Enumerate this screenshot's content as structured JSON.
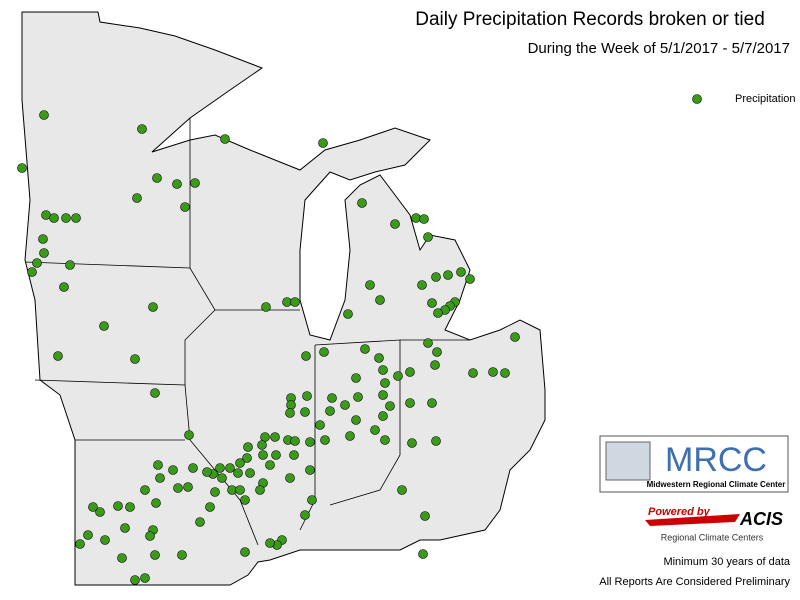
{
  "header": {
    "title": "Daily Precipitation Records broken or tied",
    "subtitle": "During the Week of 5/1/2017 - 5/7/2017"
  },
  "legend": {
    "label": "Precipitation",
    "color": "#3a9a1a"
  },
  "logos": {
    "mrcc": "MRCC",
    "mrcc_name": "Midwestern Regional Climate Center",
    "powered_by": "Powered by",
    "acis": "ACIS",
    "acis_name": "Regional Climate Centers"
  },
  "notes": [
    "Minimum 30 years of data",
    "All Reports Are Considered Preliminary"
  ]
}
